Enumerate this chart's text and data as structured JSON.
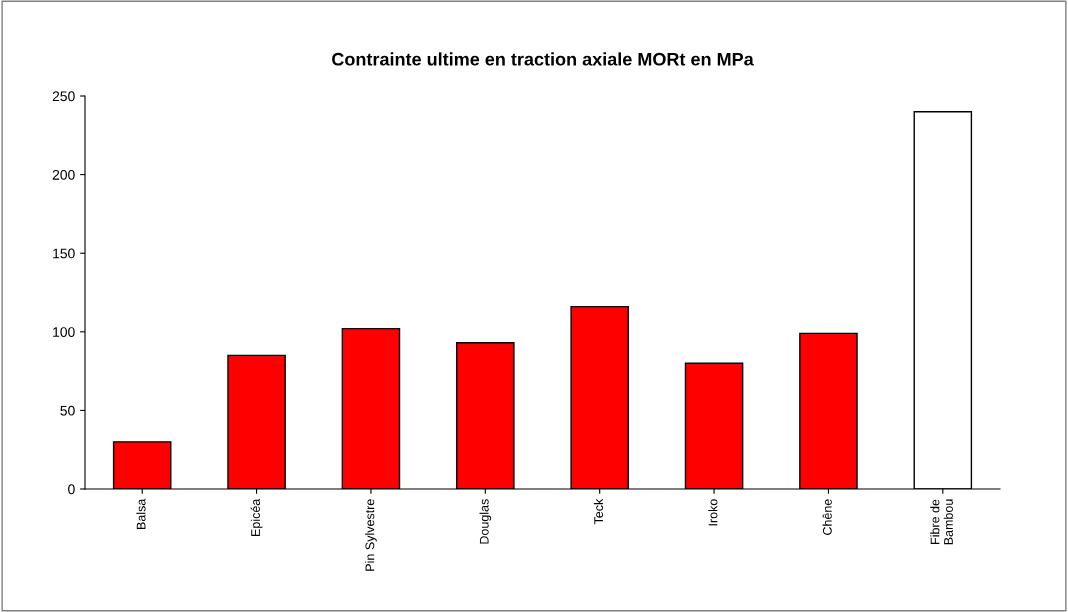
{
  "chart_data": {
    "type": "bar",
    "title": "Contrainte ultime en traction axiale MORt en MPa",
    "categories": [
      "Balsa",
      "Epicéa",
      "Pin Sylvestre",
      "Douglas",
      "Teck",
      "Iroko",
      "Chêne",
      "Fibre de\nBambou"
    ],
    "values": [
      30,
      85,
      102,
      93,
      116,
      80,
      99,
      240
    ],
    "colors": [
      "#ff0000",
      "#ff0000",
      "#ff0000",
      "#ff0000",
      "#ff0000",
      "#ff0000",
      "#ff0000",
      "#ffffff"
    ],
    "ylim": [
      0,
      250
    ],
    "yticks": [
      0,
      50,
      100,
      150,
      200,
      250
    ],
    "grid": false,
    "legend": false
  }
}
